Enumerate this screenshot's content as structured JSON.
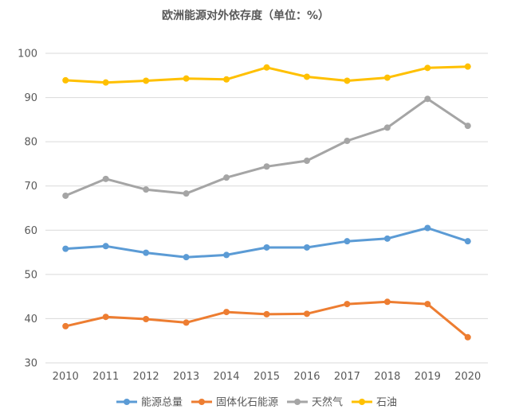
{
  "chart_data": {
    "type": "line",
    "title": "欧洲能源对外依存度（单位：%）",
    "xlabel": "",
    "ylabel": "",
    "categories": [
      "2010",
      "2011",
      "2012",
      "2013",
      "2014",
      "2015",
      "2016",
      "2017",
      "2018",
      "2019",
      "2020"
    ],
    "ylim": [
      30,
      100
    ],
    "yticks": [
      30,
      40,
      50,
      60,
      70,
      80,
      90,
      100
    ],
    "grid": true,
    "legend_position": "bottom",
    "series": [
      {
        "name": "能源总量",
        "color": "#5B9BD5",
        "values": [
          55.8,
          56.4,
          54.9,
          53.9,
          54.4,
          56.1,
          56.1,
          57.5,
          58.1,
          60.5,
          57.5
        ]
      },
      {
        "name": "固体化石能源",
        "color": "#ED7D31",
        "values": [
          38.3,
          40.4,
          39.9,
          39.1,
          41.5,
          41.0,
          41.1,
          43.3,
          43.8,
          43.3,
          35.8
        ]
      },
      {
        "name": "天然气",
        "color": "#A5A5A5",
        "values": [
          67.8,
          71.6,
          69.2,
          68.3,
          71.9,
          74.4,
          75.7,
          80.2,
          83.2,
          89.7,
          83.6
        ]
      },
      {
        "name": "石油",
        "color": "#FFC000",
        "values": [
          93.9,
          93.4,
          93.8,
          94.3,
          94.1,
          96.8,
          94.7,
          93.8,
          94.5,
          96.7,
          97.0
        ]
      }
    ]
  }
}
